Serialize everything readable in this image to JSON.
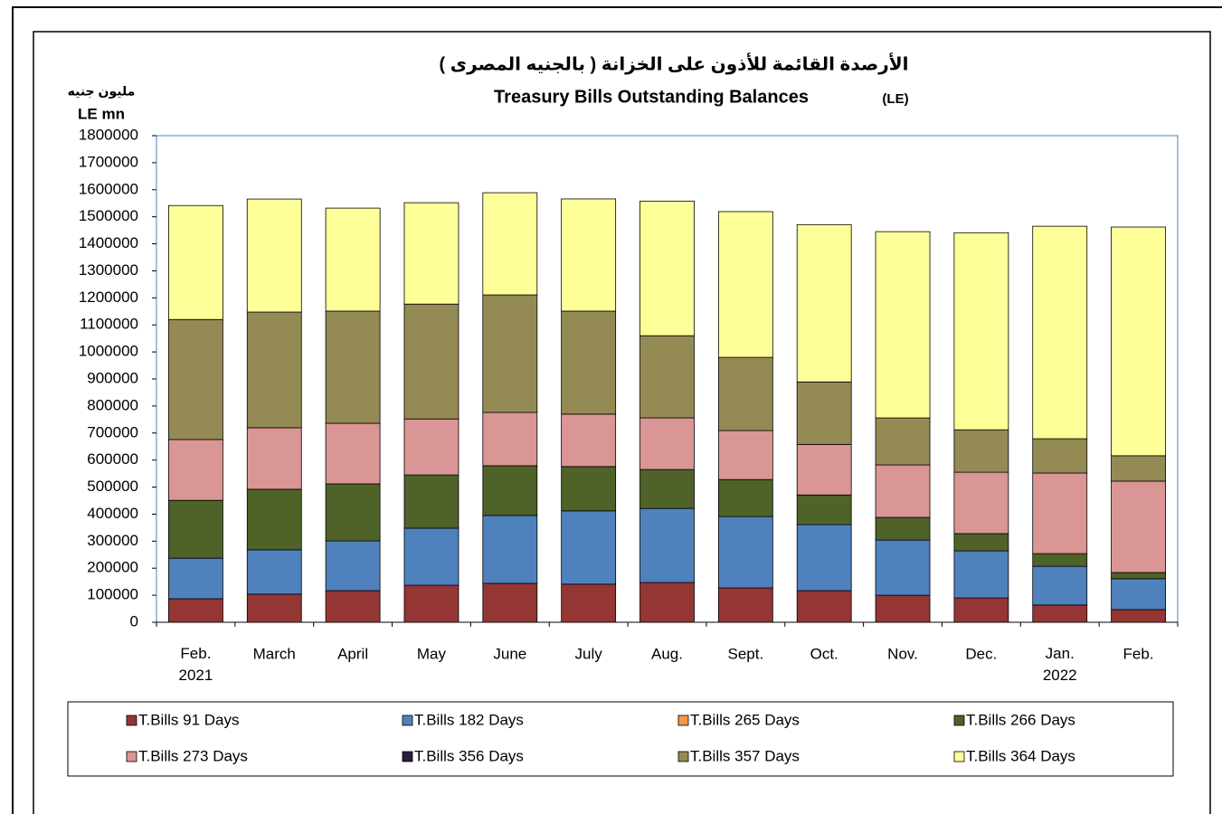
{
  "chart_data": {
    "type": "stacked_bar",
    "title_arabic": "الأرصدة القائمة للأذون على الخزانة ( بالجنيه المصرى )",
    "title": "Treasury Bills Outstanding Balances",
    "title_unit": "(LE)",
    "y_label": [
      "مليون جنيه",
      "LE mn"
    ],
    "categories": [
      "Feb. 2021",
      "March",
      "April",
      "May",
      "June",
      "July",
      "Aug.",
      "Sept.",
      "Oct.",
      "Nov.",
      "Dec.",
      "Jan. 2022",
      "Feb."
    ],
    "series": [
      {
        "name": "T.Bills 91 Days",
        "color": "#943634",
        "values": [
          87000,
          104000,
          117000,
          137000,
          144000,
          141000,
          147000,
          127000,
          117000,
          100000,
          90000,
          64000,
          47000
        ]
      },
      {
        "name": "T.Bills 182 Days",
        "color": "#4f81bd",
        "values": [
          150000,
          164000,
          184000,
          211000,
          251000,
          271000,
          274000,
          264000,
          244000,
          204000,
          174000,
          143000,
          114000
        ]
      },
      {
        "name": "T.Bills 265 Days",
        "color": "#f79646",
        "values": [
          0,
          0,
          0,
          0,
          0,
          0,
          0,
          0,
          0,
          0,
          0,
          0,
          0
        ]
      },
      {
        "name": "T.Bills 266 Days",
        "color": "#4f6228",
        "values": [
          214000,
          224000,
          211000,
          197000,
          184000,
          164000,
          144000,
          137000,
          110000,
          84000,
          64000,
          47000,
          23000
        ]
      },
      {
        "name": "T.Bills 273 Days",
        "color": "#da9694",
        "values": [
          225000,
          227500,
          224000,
          207000,
          197000,
          194000,
          191000,
          181000,
          187000,
          194000,
          227000,
          298000,
          338000
        ]
      },
      {
        "name": "T.Bills 356 Days",
        "color": "#2b1d3c",
        "values": [
          0,
          0,
          0,
          0,
          0,
          0,
          0,
          0,
          0,
          0,
          0,
          0,
          0
        ]
      },
      {
        "name": "T.Bills 357 Days",
        "color": "#948a54",
        "values": [
          444000,
          428000,
          415000,
          425000,
          435000,
          381000,
          304000,
          271000,
          231000,
          174000,
          157000,
          127000,
          94000
        ]
      },
      {
        "name": "T.Bills 364 Days",
        "color": "#ffff99",
        "values": [
          421500,
          418000,
          381000,
          375000,
          378000,
          415000,
          498000,
          539000,
          582000,
          689000,
          729000,
          786000,
          846000
        ]
      }
    ],
    "ylim": [
      0,
      1800000
    ],
    "yticks": [
      0,
      100000,
      200000,
      300000,
      400000,
      500000,
      600000,
      700000,
      800000,
      900000,
      1000000,
      1100000,
      1200000,
      1300000,
      1400000,
      1500000,
      1600000,
      1700000,
      1800000
    ]
  }
}
